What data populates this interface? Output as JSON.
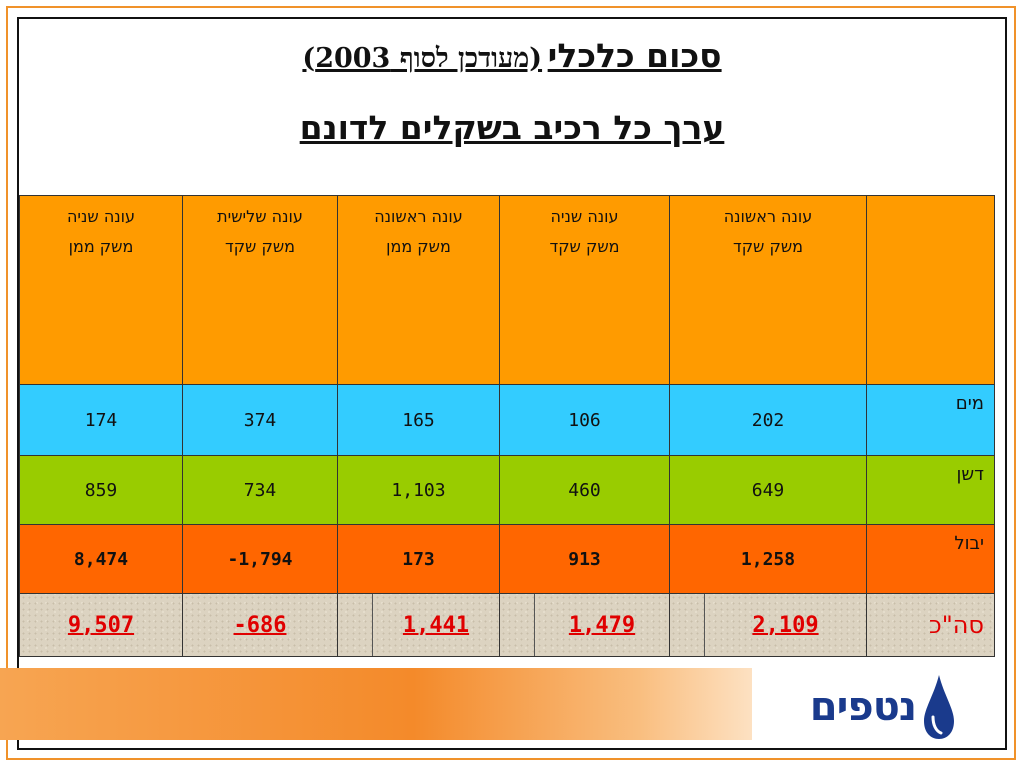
{
  "title": {
    "main": "סכום כלכלי",
    "paren": "(מעודכן לסוף 2003)"
  },
  "subtitle": "ערך כל רכיב בשקלים לדונם",
  "table": {
    "headers": [
      {
        "l1": "עונה שניה",
        "l2": "משק ממן"
      },
      {
        "l1": "עונה שלישית",
        "l2": "משק שקד"
      },
      {
        "l1": "עונה ראשונה",
        "l2": "משק ממן"
      },
      {
        "l1": "עונה שניה",
        "l2": "משק שקד"
      },
      {
        "l1": "עונה ראשונה",
        "l2": "משק שקד"
      },
      {
        "l1": "",
        "l2": ""
      }
    ],
    "rows": [
      {
        "label": "מים",
        "values": [
          "174",
          "374",
          "165",
          "106",
          "202"
        ]
      },
      {
        "label": "דשן",
        "values": [
          "859",
          "734",
          "1,103",
          "460",
          "649"
        ]
      },
      {
        "label": "יבול",
        "values": [
          "8,474",
          "-1,794",
          "173",
          "913",
          "1,258"
        ]
      },
      {
        "label": "סה\"כ",
        "values": [
          "9,507",
          "-686",
          "1,441",
          "1,479",
          "2,109"
        ]
      }
    ]
  },
  "colors": {
    "header": "#ff9b00",
    "water_row": "#33ccff",
    "fertilizer_row": "#99cc00",
    "yield_row": "#ff6600",
    "total_text": "#e00000",
    "logo": "#1a3a8c"
  },
  "logo": {
    "text": "נטפים",
    "icon": "water-drop-icon"
  }
}
